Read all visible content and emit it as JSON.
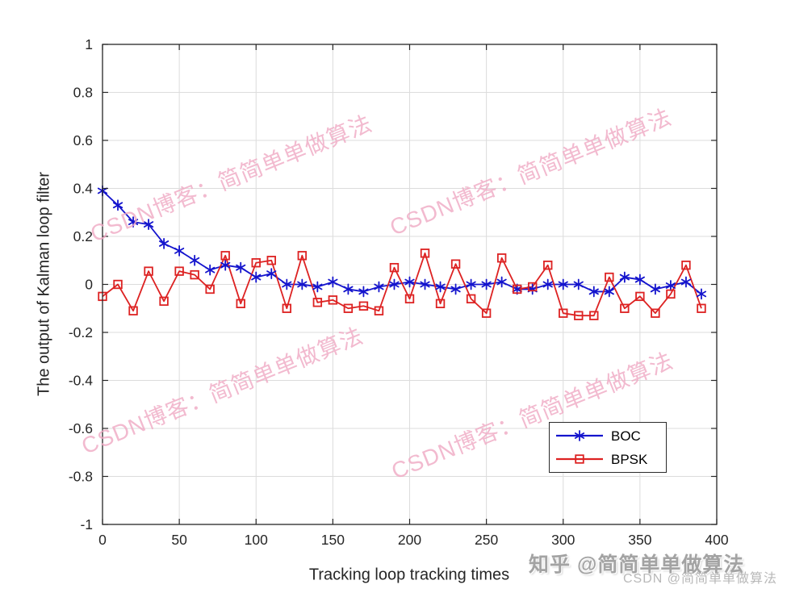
{
  "chart_data": {
    "type": "line",
    "title": "",
    "xlabel": "Tracking loop tracking times",
    "ylabel": "The output of Kalman loop filter",
    "xlim": [
      0,
      400
    ],
    "ylim": [
      -1,
      1
    ],
    "xticks": [
      0,
      50,
      100,
      150,
      200,
      250,
      300,
      350,
      400
    ],
    "xtick_labels": [
      "0",
      "50",
      "100",
      "150",
      "200",
      "250",
      "300",
      "350",
      "400"
    ],
    "yticks": [
      -1,
      -0.8,
      -0.6,
      -0.4,
      -0.2,
      0,
      0.2,
      0.4,
      0.6,
      0.8,
      1
    ],
    "ytick_labels": [
      "-1",
      "-0.8",
      "-0.6",
      "-0.4",
      "-0.2",
      "0",
      "0.2",
      "0.4",
      "0.6",
      "0.8",
      "1"
    ],
    "grid": true,
    "box": true,
    "tick_direction": "in",
    "legend_position": "inside-lower-right",
    "x": [
      0,
      10,
      20,
      30,
      40,
      50,
      60,
      70,
      80,
      90,
      100,
      110,
      120,
      130,
      140,
      150,
      160,
      170,
      180,
      190,
      200,
      210,
      220,
      230,
      240,
      250,
      260,
      270,
      280,
      290,
      300,
      310,
      320,
      330,
      340,
      350,
      360,
      370,
      380,
      390
    ],
    "series": [
      {
        "name": "BOC",
        "color": "#1414cd",
        "marker": "asterisk",
        "line_width": 1.8,
        "values": [
          0.39,
          0.33,
          0.26,
          0.25,
          0.17,
          0.14,
          0.1,
          0.06,
          0.08,
          0.07,
          0.03,
          0.045,
          0.0,
          0.0,
          -0.01,
          0.01,
          -0.02,
          -0.03,
          -0.01,
          0.0,
          0.01,
          0.0,
          -0.01,
          -0.02,
          0.0,
          0.0,
          0.01,
          -0.02,
          -0.02,
          0.0,
          0.0,
          0.0,
          -0.03,
          -0.03,
          0.03,
          0.02,
          -0.02,
          -0.005,
          0.01,
          -0.04
        ]
      },
      {
        "name": "BPSK",
        "color": "#dd2222",
        "marker": "open-square",
        "line_width": 1.8,
        "values": [
          -0.05,
          0.0,
          -0.11,
          0.055,
          -0.07,
          0.055,
          0.04,
          -0.02,
          0.12,
          -0.08,
          0.09,
          0.1,
          -0.1,
          0.12,
          -0.075,
          -0.065,
          -0.1,
          -0.09,
          -0.11,
          0.07,
          -0.06,
          0.13,
          -0.08,
          0.085,
          -0.06,
          -0.12,
          0.11,
          -0.02,
          -0.01,
          0.08,
          -0.12,
          -0.13,
          -0.13,
          0.03,
          -0.1,
          -0.05,
          -0.12,
          -0.04,
          0.08,
          -0.1
        ]
      }
    ]
  },
  "watermarks": {
    "diagonal_text": "CSDN博客：简简单单做算法",
    "diagonal_color": "#f0a9c4",
    "diagonal_count": 4,
    "zhihu_text": "知乎 @简简单单做算法",
    "csdn_text": "CSDN @简简单单做算法"
  }
}
